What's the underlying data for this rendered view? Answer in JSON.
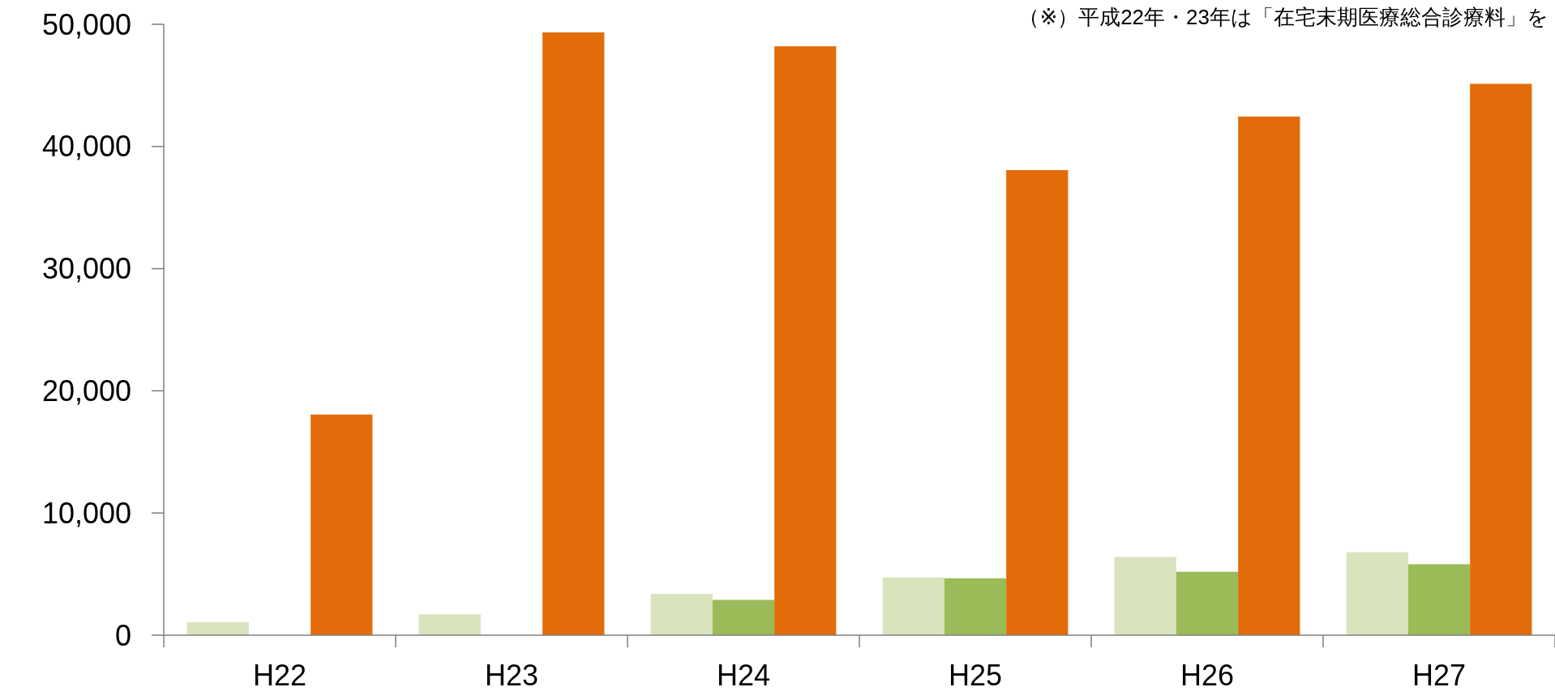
{
  "chart_data": {
    "type": "bar",
    "annotations": [
      "（※）平成22年・23年は「在宅末期医療総合診療料」を"
    ],
    "categories": [
      "H22",
      "H23",
      "H24",
      "H25",
      "H26",
      "H27"
    ],
    "series": [
      {
        "color": "#d9e4bf",
        "values": [
          1070,
          1710,
          3380,
          4730,
          6400,
          6790
        ]
      },
      {
        "color": "#9bbb59",
        "values": [
          null,
          null,
          2890,
          4660,
          5190,
          5810
        ]
      },
      {
        "color": "#e36c0a",
        "values": [
          18060,
          49340,
          48200,
          38070,
          42450,
          45130
        ]
      }
    ],
    "ylim": [
      0,
      50000
    ],
    "yticks": [
      {
        "value": 0,
        "label": "0"
      },
      {
        "value": 10000,
        "label": "10,000"
      },
      {
        "value": 20000,
        "label": "20,000"
      },
      {
        "value": 30000,
        "label": "30,000"
      },
      {
        "value": 40000,
        "label": "40,000"
      },
      {
        "value": 50000,
        "label": "50,000"
      }
    ],
    "grid": false
  }
}
